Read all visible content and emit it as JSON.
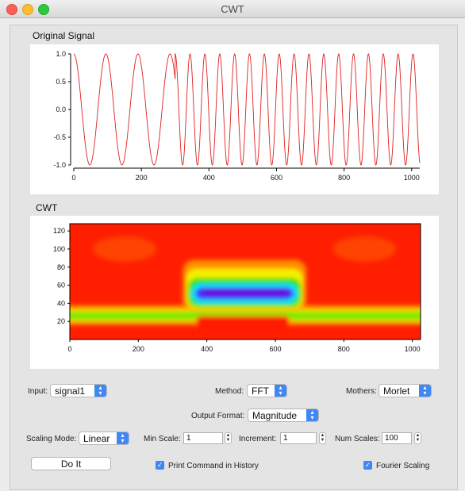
{
  "window": {
    "title": "CWT"
  },
  "plots": {
    "signal_title": "Original Signal",
    "cwt_title": "CWT"
  },
  "chart_data": [
    {
      "type": "line",
      "title": "Original Signal",
      "xlim": [
        0,
        1024
      ],
      "ylim": [
        -1.0,
        1.0
      ],
      "x_ticks": [
        "0",
        "200",
        "400",
        "600",
        "800",
        "1000"
      ],
      "y_ticks": [
        "1.0",
        "0.5",
        "0.0",
        "-0.5",
        "-1.0"
      ],
      "series": [
        {
          "color": "#e02020",
          "segments": [
            {
              "x_start": 0,
              "x_end": 300,
              "period": 95
            },
            {
              "x_start": 300,
              "x_end": 1024,
              "period": 44
            }
          ]
        }
      ]
    },
    {
      "type": "heatmap",
      "title": "CWT",
      "xlim": [
        0,
        1024
      ],
      "ylim": [
        0,
        128
      ],
      "x_ticks": [
        "0",
        "200",
        "400",
        "600",
        "800",
        "1000"
      ],
      "y_ticks": [
        "120",
        "100",
        "80",
        "60",
        "40",
        "20"
      ],
      "colormap": [
        "#ff1e00",
        "#ff9000",
        "#f5f000",
        "#20e000",
        "#00e8ff",
        "#3a3aff",
        "#6a00d8"
      ]
    }
  ],
  "controls": {
    "input_label": "Input:",
    "input_value": "signal1",
    "method_label": "Method:",
    "method_value": "FFT",
    "mothers_label": "Mothers:",
    "mothers_value": "Morlet",
    "output_format_label": "Output Format:",
    "output_format_value": "Magnitude",
    "scaling_mode_label": "Scaling Mode:",
    "scaling_mode_value": "Linear",
    "min_scale_label": "Min Scale:",
    "min_scale_value": "1",
    "increment_label": "Increment:",
    "increment_value": "1",
    "num_scales_label": "Num Scales:",
    "num_scales_value": "100",
    "do_it_label": "Do It",
    "print_command_label": "Print Command in History",
    "fourier_scaling_label": "Fourier Scaling"
  }
}
